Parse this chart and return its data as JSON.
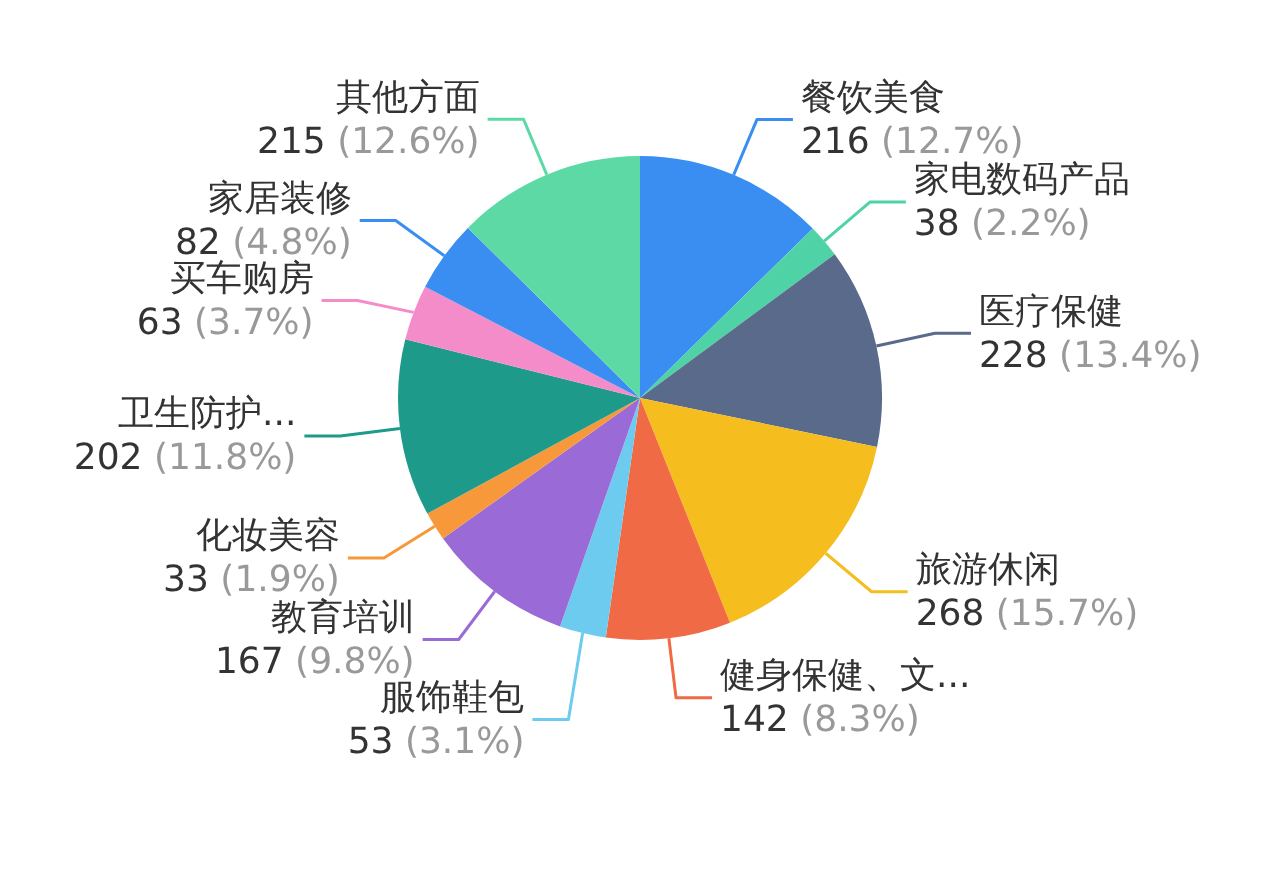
{
  "chart_data": {
    "type": "pie",
    "legend": false,
    "categories": [
      "餐饮美食",
      "家电数码产品",
      "医疗保健",
      "旅游休闲",
      "健身保健、文...",
      "服饰鞋包",
      "教育培训",
      "化妆美容",
      "卫生防护...",
      "买车购房",
      "家居装修",
      "其他方面"
    ],
    "values": [
      216,
      38,
      228,
      268,
      142,
      53,
      167,
      33,
      202,
      63,
      82,
      215
    ],
    "value_labels": [
      "216 (12.7%)",
      "38 (2.2%)",
      "228 (13.4%)",
      "268 (15.7%)",
      "142 (8.3%)",
      "53 (3.1%)",
      "167 (9.8%)",
      "33 (1.9%)",
      "202 (11.8%)",
      "63 (3.7%)",
      "82 (4.8%)",
      "215 (12.6%)"
    ],
    "colors": [
      "#3a8ef2",
      "#4fd3a6",
      "#5a6a8a",
      "#f5be1e",
      "#ef6a45",
      "#6dcbef",
      "#9a6ad6",
      "#f7983a",
      "#1e9a8a",
      "#f58cca",
      "#3a8ef2",
      "#5dd9a5"
    ]
  }
}
